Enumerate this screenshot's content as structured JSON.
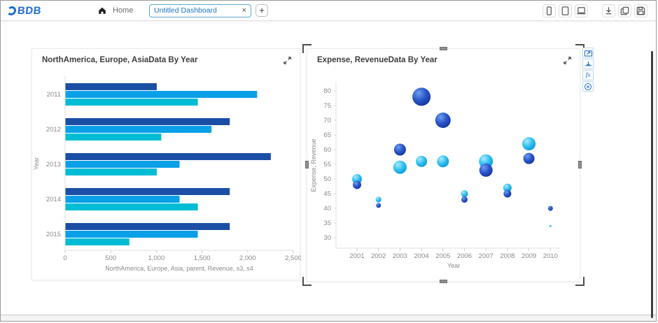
{
  "topbar": {
    "logo_text": "BDB",
    "home_label": "Home",
    "tab": {
      "title": "Untitled Dashboard",
      "close_icon": "×"
    },
    "add_tab_icon": "+",
    "device_buttons": [
      "mobile-preview-icon",
      "tablet-preview-icon",
      "desktop-preview-icon"
    ],
    "action_buttons": [
      "export-icon",
      "copy-icon",
      "save-icon"
    ]
  },
  "widgets": {
    "bubble_toolbar": {
      "icons": [
        "chart-export-icon",
        "axis-settings-icon",
        "formula-icon",
        "remove-widget-icon"
      ],
      "fx_label": "fx"
    }
  },
  "colors": {
    "bar_series": [
      "#1b4fa5",
      "#0aa0e8",
      "#00bcd4"
    ],
    "bubble_dark_edge": "#16349e",
    "bubble_light_edge": "#0a9ad8",
    "axis_text": "#8a8a8a",
    "axis_line": "#e0e0e0"
  },
  "chart_data": [
    {
      "id": "bar",
      "type": "bar",
      "orientation": "horizontal",
      "title": "NorthAmerica, Europe, AsiaData By Year",
      "categories": [
        "2011",
        "2012",
        "2013",
        "2014",
        "2015"
      ],
      "series": [
        {
          "name": "NorthAmerica",
          "color": "#1b4fa5",
          "values": [
            1000,
            1800,
            2250,
            1800,
            1800
          ]
        },
        {
          "name": "Europe",
          "color": "#0aa0e8",
          "values": [
            2100,
            1600,
            1250,
            1250,
            1450
          ]
        },
        {
          "name": "Asia",
          "color": "#00bcd4",
          "values": [
            1450,
            1050,
            1000,
            1450,
            700
          ]
        }
      ],
      "xlabel": "NorthAmerica, Europe, Asia, parent, Revenue, s3, s4",
      "ylabel": "Year",
      "xlim": [
        0,
        2500
      ],
      "xticks": [
        {
          "v": 0,
          "label": "0"
        },
        {
          "v": 500,
          "label": "500"
        },
        {
          "v": 1000,
          "label": "1,000"
        },
        {
          "v": 1500,
          "label": "1,500"
        },
        {
          "v": 2000,
          "label": "2,000"
        },
        {
          "v": 2500,
          "label": "2,500"
        }
      ],
      "grid": false,
      "legend": "none"
    },
    {
      "id": "bubble",
      "type": "scatter",
      "title": "Expense, RevenueData By Year",
      "xlabel": "Year",
      "ylabel": "Expense, Revenue",
      "categories": [
        2001,
        2002,
        2003,
        2004,
        2005,
        2006,
        2007,
        2008,
        2009,
        2010
      ],
      "ylim": [
        30,
        80
      ],
      "yticks": [
        30,
        35,
        40,
        45,
        50,
        55,
        60,
        65,
        70,
        75,
        80
      ],
      "series": [
        {
          "name": "Expense",
          "style": "light",
          "points": [
            [
              2001,
              50,
              7
            ],
            [
              2002,
              43,
              4
            ],
            [
              2003,
              54,
              9.5
            ],
            [
              2004,
              56,
              8
            ],
            [
              2005,
              56,
              8.5
            ],
            [
              2006,
              45,
              5
            ],
            [
              2007,
              56,
              10
            ],
            [
              2008,
              47,
              6
            ],
            [
              2009,
              62,
              9.5
            ],
            [
              2010,
              34,
              1.5
            ]
          ]
        },
        {
          "name": "Revenue",
          "style": "dark",
          "points": [
            [
              2001,
              48,
              6
            ],
            [
              2002,
              41,
              3.5
            ],
            [
              2003,
              60,
              8.5
            ],
            [
              2004,
              78,
              13
            ],
            [
              2005,
              70,
              11
            ],
            [
              2006,
              43,
              4.5
            ],
            [
              2007,
              53,
              9.5
            ],
            [
              2008,
              45,
              5.5
            ],
            [
              2009,
              57,
              8
            ],
            [
              2010,
              40,
              3.5
            ]
          ]
        }
      ],
      "grid": false,
      "legend": "none"
    }
  ]
}
